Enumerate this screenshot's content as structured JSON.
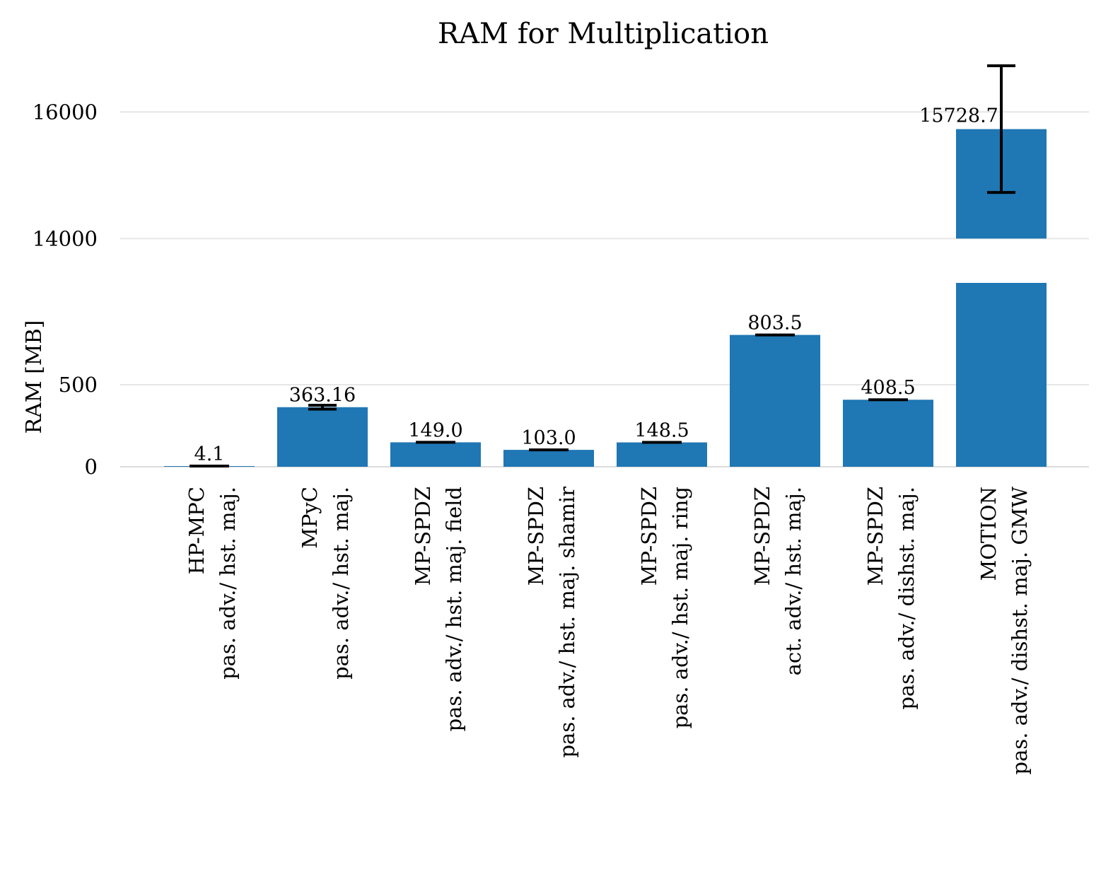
{
  "chart_data": {
    "type": "bar",
    "title": "RAM for Multiplication",
    "ylabel": "RAM [MB]",
    "xlabel": "",
    "broken_axis": true,
    "y_segments": [
      {
        "range": [
          0,
          1000
        ],
        "ticks": [
          0,
          500
        ]
      },
      {
        "range": [
          13300,
          17500
        ],
        "ticks": [
          14000,
          16000
        ]
      }
    ],
    "grid": true,
    "bar_color": "#1f77b4",
    "categories": [
      [
        "HP-MPC",
        "pas. adv./ hst. maj."
      ],
      [
        "MPyC",
        "pas. adv./ hst. maj."
      ],
      [
        "MP-SPDZ",
        "pas. adv./ hst. maj. field"
      ],
      [
        "MP-SPDZ",
        "pas. adv./ hst. maj. shamir"
      ],
      [
        "MP-SPDZ",
        "pas. adv./ hst. maj. ring"
      ],
      [
        "MP-SPDZ",
        "act. adv./ hst. maj."
      ],
      [
        "MP-SPDZ",
        "pas. adv./ dishst. maj."
      ],
      [
        "MOTION",
        "pas. adv./ dishst. maj. GMW"
      ]
    ],
    "values": [
      4.1,
      363.16,
      149.0,
      103.0,
      148.5,
      803.5,
      408.5,
      15728.7
    ],
    "value_labels": [
      "4.1",
      "363.16",
      "149.0",
      "103.0",
      "148.5",
      "803.5",
      "408.5",
      "15728.7"
    ],
    "errors": [
      0,
      12,
      4,
      4,
      4,
      6,
      8,
      1000
    ]
  }
}
